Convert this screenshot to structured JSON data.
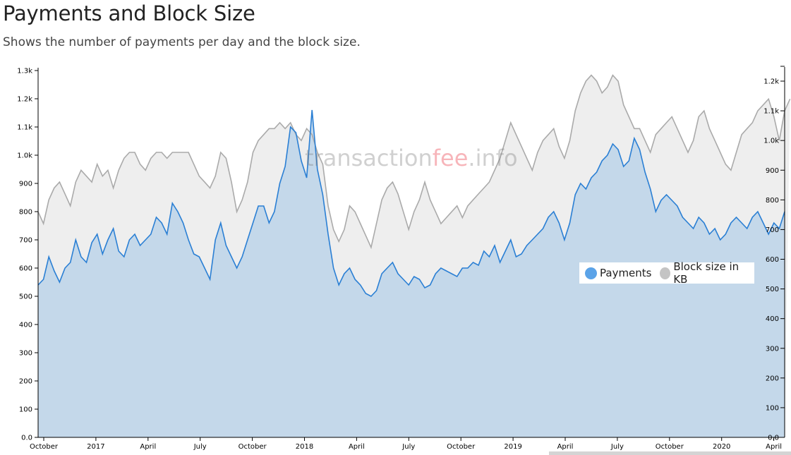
{
  "page": {
    "title": "Payments and Block Size",
    "subtitle": "Shows the number of payments per day and the block size."
  },
  "watermark": {
    "part1": "transaction",
    "part2": "fee",
    "part3": ".info"
  },
  "legend": {
    "items": [
      {
        "label": "Payments",
        "color": "#5ba3e8"
      },
      {
        "label": "Block size in KB",
        "color": "#c4c4c4"
      }
    ]
  },
  "chart_data": {
    "type": "area",
    "x_labels": [
      "October",
      "2017",
      "April",
      "July",
      "October",
      "2018",
      "April",
      "July",
      "October",
      "2019",
      "April",
      "July",
      "October",
      "2020",
      "April"
    ],
    "y_left": {
      "ticks": [
        "0.0",
        "100",
        "200",
        "300",
        "400",
        "500",
        "600",
        "700",
        "800",
        "900",
        "1.0k",
        "1.1k",
        "1.2k",
        "1.3k"
      ],
      "range": [
        0,
        1300
      ]
    },
    "y_right": {
      "ticks": [
        "0.0",
        "100",
        "200",
        "300",
        "400",
        "500",
        "600",
        "700",
        "800",
        "900",
        "1.0k",
        "1.1k",
        "1.2k"
      ],
      "range": [
        0,
        1240
      ]
    },
    "colors": {
      "payments_line": "#2a7fd4",
      "payments_fill": "#c4d8ea",
      "block_line": "#aaaaaa",
      "block_fill": "#eeeeee"
    },
    "series": [
      {
        "name": "Payments",
        "axis": "left",
        "values": [
          540,
          560,
          640,
          590,
          550,
          600,
          620,
          700,
          640,
          620,
          690,
          720,
          650,
          700,
          740,
          660,
          640,
          700,
          720,
          680,
          700,
          720,
          780,
          760,
          720,
          830,
          800,
          760,
          700,
          650,
          640,
          600,
          560,
          700,
          760,
          680,
          640,
          600,
          640,
          700,
          760,
          820,
          820,
          760,
          800,
          900,
          960,
          1100,
          1080,
          980,
          920,
          1160,
          950,
          860,
          720,
          600,
          540,
          580,
          600,
          560,
          540,
          510,
          500,
          520,
          580,
          600,
          620,
          580,
          560,
          540,
          570,
          560,
          530,
          540,
          580,
          600,
          590,
          580,
          570,
          600,
          600,
          620,
          610,
          660,
          640,
          680,
          620,
          660,
          700,
          640,
          650,
          680,
          700,
          720,
          740,
          780,
          800,
          760,
          700,
          760,
          860,
          900,
          880,
          920,
          940,
          980,
          1000,
          1040,
          1020,
          960,
          980,
          1060,
          1020,
          940,
          880,
          800,
          840,
          860,
          840,
          820,
          780,
          760,
          740,
          780,
          760,
          720,
          740,
          700,
          720,
          760,
          780,
          760,
          740,
          780,
          800,
          760,
          720,
          760,
          740,
          800
        ]
      },
      {
        "name": "Block size in KB",
        "axis": "right",
        "values": [
          760,
          720,
          800,
          840,
          860,
          820,
          780,
          860,
          900,
          880,
          860,
          920,
          880,
          900,
          840,
          900,
          940,
          960,
          960,
          920,
          900,
          940,
          960,
          960,
          940,
          960,
          960,
          960,
          960,
          920,
          880,
          860,
          840,
          880,
          960,
          940,
          860,
          760,
          800,
          860,
          960,
          1000,
          1020,
          1040,
          1040,
          1060,
          1040,
          1060,
          1020,
          1000,
          1040,
          1020,
          960,
          920,
          780,
          700,
          660,
          700,
          780,
          760,
          720,
          680,
          640,
          720,
          800,
          840,
          860,
          820,
          760,
          700,
          760,
          800,
          860,
          800,
          760,
          720,
          740,
          760,
          780,
          740,
          780,
          800,
          820,
          840,
          860,
          900,
          940,
          1000,
          1060,
          1020,
          980,
          940,
          900,
          960,
          1000,
          1020,
          1040,
          980,
          940,
          1000,
          1100,
          1160,
          1200,
          1220,
          1200,
          1160,
          1180,
          1220,
          1200,
          1120,
          1080,
          1040,
          1040,
          1000,
          960,
          1020,
          1040,
          1060,
          1080,
          1040,
          1000,
          960,
          1000,
          1080,
          1100,
          1040,
          1000,
          960,
          920,
          900,
          960,
          1020,
          1040,
          1060,
          1100,
          1120,
          1140,
          1080,
          1000,
          1100,
          1140
        ]
      }
    ]
  }
}
